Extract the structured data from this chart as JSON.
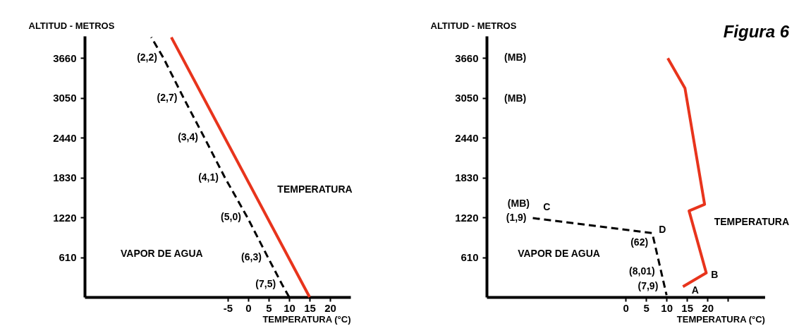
{
  "chart_data": [
    {
      "type": "line",
      "xlabel": "TEMPERATURA (°C)",
      "ylabel": "ALTITUD - METROS",
      "xlim": [
        -40,
        25
      ],
      "ylim": [
        0,
        4000
      ],
      "xticks": [
        -5,
        0,
        5,
        10,
        15,
        20
      ],
      "yticks": [
        610,
        1220,
        1830,
        2440,
        3050,
        3660
      ],
      "series": [
        {
          "color": "#000000",
          "line_style": "dashed",
          "x": [
            10,
            8.3,
            4.8,
            -0.2,
            -5.7,
            -10.7,
            -15.8,
            -20.7,
            -23.7
          ],
          "values": [
            0,
            190,
            610,
            1220,
            1830,
            2440,
            3050,
            3660,
            3980
          ]
        },
        {
          "color": "#e8341c",
          "line_style": "solid",
          "x": [
            15,
            -18.8
          ],
          "values": [
            0,
            3980
          ]
        }
      ],
      "annotations": [
        "VAPOR DE AGUA",
        "TEMPERATURA",
        {
          "text": "(2,2)",
          "x": -20.7,
          "y": 3660
        },
        {
          "text": "(2,7)",
          "x": -15.8,
          "y": 3050
        },
        {
          "text": "(3,4)",
          "x": -10.7,
          "y": 2440
        },
        {
          "text": "(4,1)",
          "x": -5.7,
          "y": 1830
        },
        {
          "text": "(5,0)",
          "x": -0.2,
          "y": 1220
        },
        {
          "text": "(6,3)",
          "x": 4.8,
          "y": 610
        },
        {
          "text": "(7,5)",
          "x": 8.3,
          "y": 190
        }
      ]
    },
    {
      "type": "line",
      "title": "Figura 6",
      "xlabel": "TEMPERATURA (°C)",
      "ylabel": "ALTITUD - METROS",
      "xlim": [
        -34,
        34
      ],
      "ylim": [
        0,
        4000
      ],
      "xticks": [
        0,
        5,
        10,
        15,
        20,
        {
          "value": 25,
          "label": null
        }
      ],
      "yticks": [
        610,
        1220,
        1830,
        2440,
        3050,
        3660
      ],
      "series": [
        {
          "color": "#000000",
          "line_style": "dashed",
          "x": [
            -22.7,
            6.5,
            10
          ],
          "values": [
            1210,
            980,
            30
          ]
        },
        {
          "color": "#e8341c",
          "line_style": "solid",
          "x": [
            14,
            19.7,
            15.5,
            19.3,
            14.5,
            10.3
          ],
          "values": [
            160,
            370,
            1320,
            1420,
            3200,
            3660
          ]
        }
      ],
      "annotations": [
        "(MB)",
        "(MB)",
        "(MB)",
        "C",
        "D",
        "A",
        "B",
        "VAPOR DE AGUA",
        "TEMPERATURA",
        {
          "text": "(1,9)",
          "x": -22.7,
          "y": 1210
        },
        {
          "text": "(62)",
          "x": 7.05,
          "y": 830
        },
        {
          "text": "(8,01)",
          "x": 8.7,
          "y": 390
        },
        {
          "text": "(7,9)",
          "x": 9.5,
          "y": 160
        }
      ]
    }
  ]
}
